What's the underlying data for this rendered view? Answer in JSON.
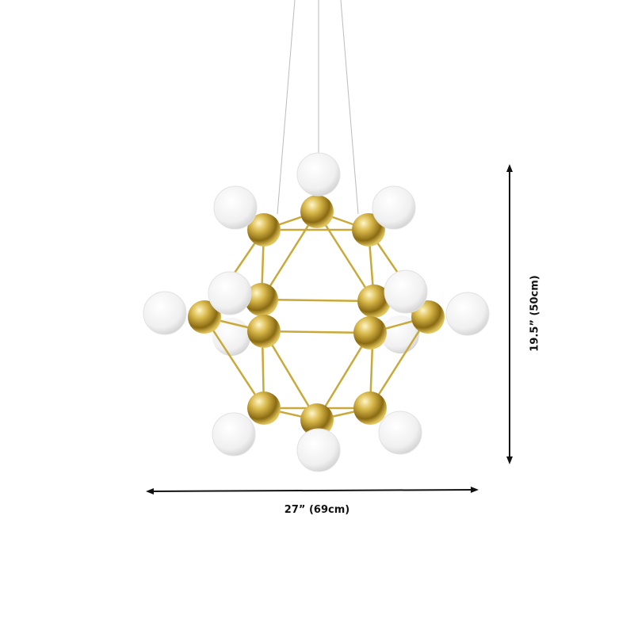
{
  "dimensions": {
    "width_label": "27” (69cm)",
    "height_label": "19.5” (50cm)"
  },
  "colors": {
    "background": "#ffffff",
    "gold": "#c9a93a",
    "bulb": "#f2f2f2",
    "arrow": "#111111"
  },
  "product": "gold molecular chandelier with white globe bulbs"
}
